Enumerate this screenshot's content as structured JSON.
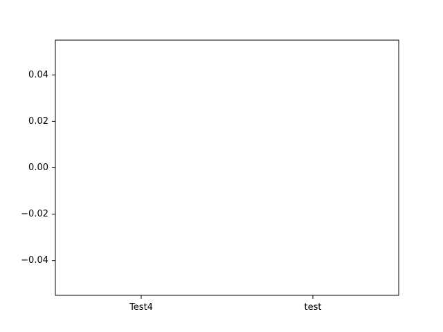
{
  "chart_data": {
    "type": "bar",
    "categories": [
      "Test4",
      "test"
    ],
    "values": [
      0,
      0
    ],
    "title": "",
    "xlabel": "",
    "ylabel": "",
    "ylim": [
      -0.055,
      0.055
    ],
    "yticks": [
      0.04,
      0.02,
      0.0,
      -0.02,
      -0.04
    ],
    "ytick_labels": [
      "0.04",
      "0.02",
      "0.00",
      "−0.02",
      "−0.04"
    ],
    "grid": false,
    "legend": "none",
    "colors": {
      "axes": "#000000",
      "background": "#ffffff",
      "bar": "#1f77b4"
    }
  }
}
